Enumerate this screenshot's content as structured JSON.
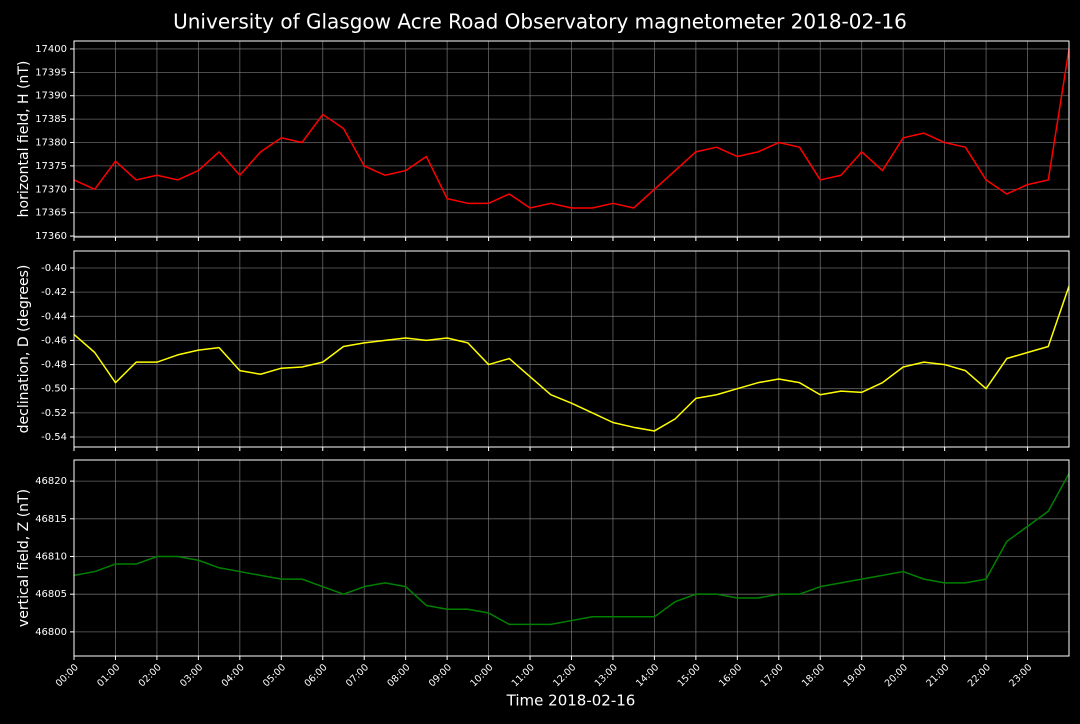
{
  "title": "University of Glasgow Acre Road Observatory magnetometer 2018-02-16",
  "x_label": "Time 2018-02-16",
  "chart_data": [
    {
      "type": "line",
      "y_label": "horizontal field, H (nT)",
      "color": "#ff0000",
      "grid": true,
      "xlim": [
        0,
        24
      ],
      "xticks": [
        0,
        1,
        2,
        3,
        4,
        5,
        6,
        7,
        8,
        9,
        10,
        11,
        12,
        13,
        14,
        15,
        16,
        17,
        18,
        19,
        20,
        21,
        22,
        23
      ],
      "ylim": [
        17359.8,
        17401.7
      ],
      "yticks": [
        17360,
        17365,
        17370,
        17375,
        17380,
        17385,
        17390,
        17395,
        17400
      ],
      "x": [
        0,
        0.5,
        1,
        1.5,
        2,
        2.5,
        3,
        3.5,
        4,
        4.5,
        5,
        5.5,
        6,
        6.5,
        7,
        7.5,
        8,
        8.5,
        9,
        9.5,
        10,
        10.5,
        11,
        11.5,
        12,
        12.5,
        13,
        13.5,
        14,
        14.5,
        15,
        15.5,
        16,
        16.5,
        17,
        17.5,
        18,
        18.5,
        19,
        19.5,
        20,
        20.5,
        21,
        21.5,
        22,
        22.5,
        23,
        23.5,
        24
      ],
      "values": [
        17372,
        17370,
        17376,
        17372,
        17373,
        17372,
        17374,
        17378,
        17373,
        17378,
        17381,
        17380,
        17386,
        17383,
        17375,
        17373,
        17374,
        17377,
        17368,
        17367,
        17367,
        17369,
        17366,
        17367,
        17366,
        17366,
        17367,
        17366,
        17370,
        17374,
        17378,
        17379,
        17377,
        17378,
        17380,
        17379,
        17372,
        17373,
        17378,
        17374,
        17381,
        17382,
        17380,
        17379,
        17372,
        17369,
        17371,
        17372,
        17400
      ]
    },
    {
      "type": "line",
      "y_label": "declination, D (degrees)",
      "color": "#ffff00",
      "grid": true,
      "xlim": [
        0,
        24
      ],
      "xticks": [
        0,
        1,
        2,
        3,
        4,
        5,
        6,
        7,
        8,
        9,
        10,
        11,
        12,
        13,
        14,
        15,
        16,
        17,
        18,
        19,
        20,
        21,
        22,
        23
      ],
      "ylim": [
        -0.5483,
        -0.3859
      ],
      "yticks": [
        -0.54,
        -0.52,
        {
          "value": -0.5,
          "label": "-0.50"
        },
        -0.48,
        -0.46,
        -0.44,
        -0.42,
        {
          "value": -0.4,
          "label": "-0.40"
        }
      ],
      "x": [
        0,
        0.5,
        1,
        1.5,
        2,
        2.5,
        3,
        3.5,
        4,
        4.5,
        5,
        5.5,
        6,
        6.5,
        7,
        7.5,
        8,
        8.5,
        9,
        9.5,
        10,
        10.5,
        11,
        11.5,
        12,
        12.5,
        13,
        13.5,
        14,
        14.5,
        15,
        15.5,
        16,
        16.5,
        17,
        17.5,
        18,
        18.5,
        19,
        19.5,
        20,
        20.5,
        21,
        21.5,
        22,
        22.5,
        23,
        23.5,
        24
      ],
      "values": [
        -0.455,
        -0.47,
        -0.495,
        -0.478,
        -0.478,
        -0.472,
        -0.468,
        -0.466,
        -0.485,
        -0.488,
        -0.483,
        -0.482,
        -0.478,
        -0.465,
        -0.462,
        -0.46,
        -0.458,
        -0.46,
        -0.458,
        -0.462,
        -0.48,
        -0.475,
        -0.49,
        -0.505,
        -0.512,
        -0.52,
        -0.528,
        -0.532,
        -0.535,
        -0.525,
        -0.508,
        -0.505,
        -0.5,
        -0.495,
        -0.492,
        -0.495,
        -0.505,
        -0.502,
        -0.503,
        -0.495,
        -0.482,
        -0.478,
        -0.48,
        -0.485,
        -0.5,
        -0.475,
        -0.47,
        -0.465,
        -0.415
      ]
    },
    {
      "type": "line",
      "y_label": "vertical field, Z (nT)",
      "color": "#008000",
      "grid": true,
      "xlim": [
        0,
        24
      ],
      "xticks": [
        {
          "value": 0,
          "label": "00:00"
        },
        {
          "value": 1,
          "label": "01:00"
        },
        {
          "value": 2,
          "label": "02:00"
        },
        {
          "value": 3,
          "label": "03:00"
        },
        {
          "value": 4,
          "label": "04:00"
        },
        {
          "value": 5,
          "label": "05:00"
        },
        {
          "value": 6,
          "label": "06:00"
        },
        {
          "value": 7,
          "label": "07:00"
        },
        {
          "value": 8,
          "label": "08:00"
        },
        {
          "value": 9,
          "label": "09:00"
        },
        {
          "value": 10,
          "label": "10:00"
        },
        {
          "value": 11,
          "label": "11:00"
        },
        {
          "value": 12,
          "label": "12:00"
        },
        {
          "value": 13,
          "label": "13:00"
        },
        {
          "value": 14,
          "label": "14:00"
        },
        {
          "value": 15,
          "label": "15:00"
        },
        {
          "value": 16,
          "label": "16:00"
        },
        {
          "value": 17,
          "label": "17:00"
        },
        {
          "value": 18,
          "label": "18:00"
        },
        {
          "value": 19,
          "label": "19:00"
        },
        {
          "value": 20,
          "label": "20:00"
        },
        {
          "value": 21,
          "label": "21:00"
        },
        {
          "value": 22,
          "label": "22:00"
        },
        {
          "value": 23,
          "label": "23:00"
        }
      ],
      "ylim": [
        46796.8,
        46822.8
      ],
      "yticks": [
        46800,
        46805,
        46810,
        46815,
        46820
      ],
      "x": [
        0,
        0.5,
        1,
        1.5,
        2,
        2.5,
        3,
        3.5,
        4,
        4.5,
        5,
        5.5,
        6,
        6.5,
        7,
        7.5,
        8,
        8.5,
        9,
        9.5,
        10,
        10.5,
        11,
        11.5,
        12,
        12.5,
        13,
        13.5,
        14,
        14.5,
        15,
        15.5,
        16,
        16.5,
        17,
        17.5,
        18,
        18.5,
        19,
        19.5,
        20,
        20.5,
        21,
        21.5,
        22,
        22.5,
        23,
        23.5,
        24
      ],
      "values": [
        46807.5,
        46808,
        46809,
        46809,
        46810,
        46810,
        46809.5,
        46808.5,
        46808,
        46807.5,
        46807,
        46807,
        46806,
        46805,
        46806,
        46806.5,
        46806,
        46803.5,
        46803,
        46803,
        46802.5,
        46801,
        46801,
        46801,
        46801.5,
        46802,
        46802,
        46802,
        46802,
        46804,
        46805,
        46805,
        46804.5,
        46804.5,
        46805,
        46805,
        46806,
        46806.5,
        46807,
        46807.5,
        46808,
        46807,
        46806.5,
        46806.5,
        46807,
        46812,
        46814,
        46816,
        46821
      ]
    }
  ]
}
